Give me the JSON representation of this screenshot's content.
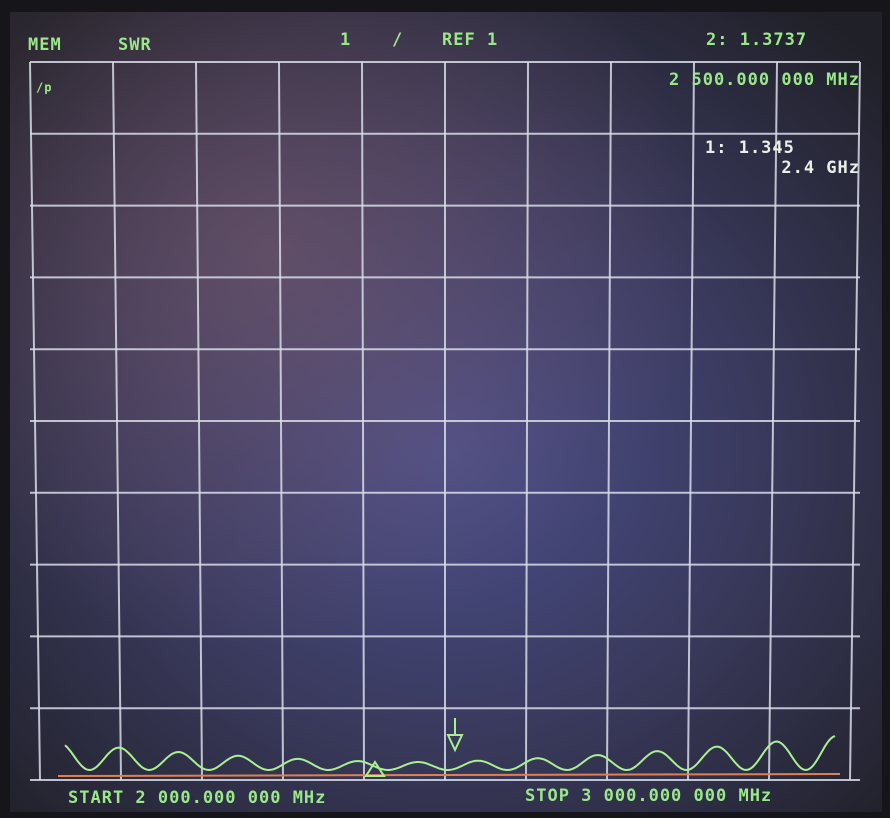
{
  "header": {
    "mode": "MEM",
    "format": "SWR",
    "channel": "1",
    "scale_symbol": "/",
    "reference": "REF 1",
    "active_marker_readout": "2: 1.3737"
  },
  "grid_label": "/p",
  "marker_2": {
    "frequency": "2 500.000 000 MHz"
  },
  "marker_1": {
    "value": "1: 1.345",
    "frequency": "2.4 GHz"
  },
  "footer": {
    "start": "START 2 000.000 000 MHz",
    "stop": "STOP 3 000.000 000 MHz"
  }
}
